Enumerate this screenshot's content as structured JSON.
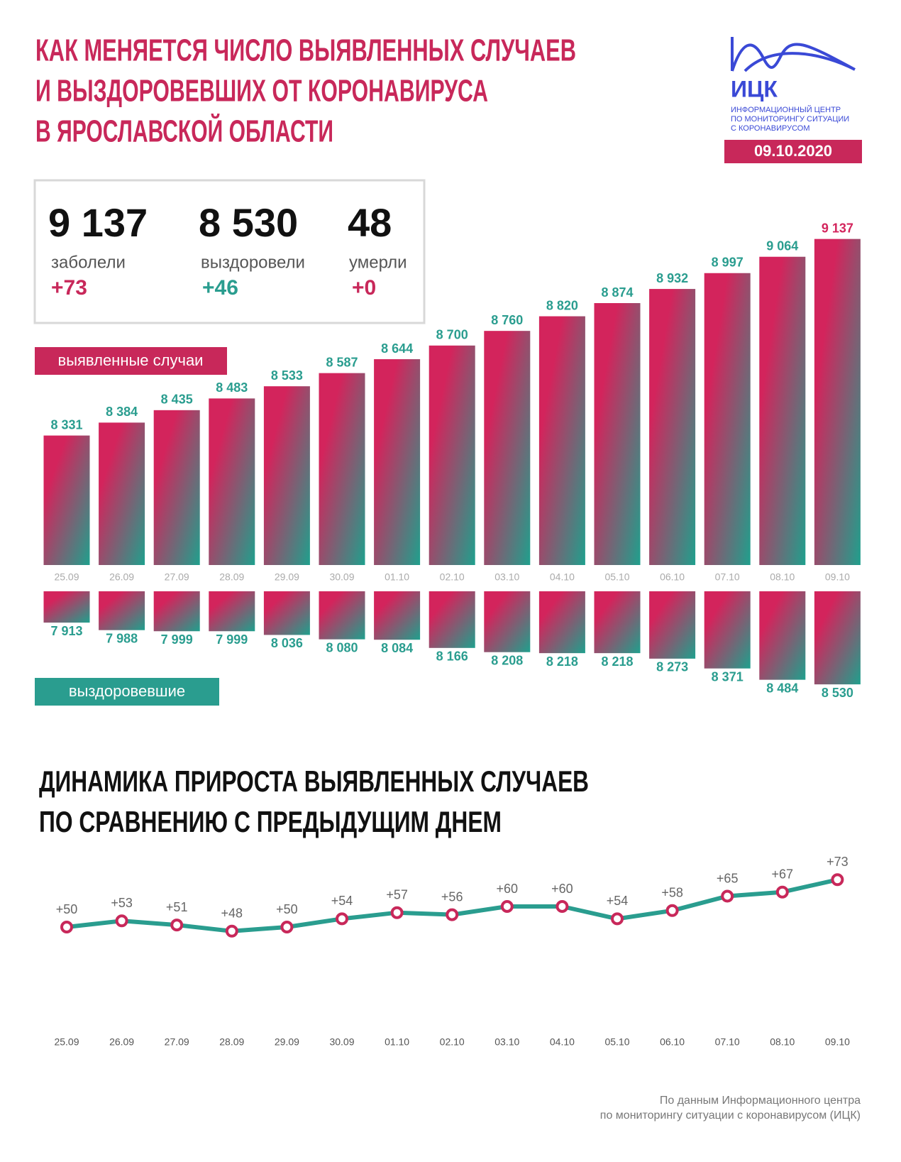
{
  "header": {
    "title_lines": [
      "КАК МЕНЯЕТСЯ ЧИСЛО ВЫЯВЛЕННЫХ СЛУЧАЕВ",
      "И ВЫЗДОРОВЕВШИХ ОТ КОРОНАВИРУСА",
      "В ЯРОСЛАВСКОЙ ОБЛАСТИ"
    ],
    "logo": {
      "abbr": "ИЦК",
      "lines": [
        "ИНФОРМАЦИОННЫЙ ЦЕНТР",
        "ПО МОНИТОРИНГУ СИТУАЦИИ",
        "С КОРОНАВИРУСОМ"
      ]
    },
    "date": "09.10.2020"
  },
  "stats": [
    {
      "value": "9 137",
      "label": "заболели",
      "delta": "+73"
    },
    {
      "value": "8 530",
      "label": "выздоровели",
      "delta": "+46"
    },
    {
      "value": "48",
      "label": "умерли",
      "delta": "+0"
    }
  ],
  "chart_data": [
    {
      "type": "bar",
      "legend": "выявленные случаи",
      "categories": [
        "25.09",
        "26.09",
        "27.09",
        "28.09",
        "29.09",
        "30.09",
        "01.10",
        "02.10",
        "03.10",
        "04.10",
        "05.10",
        "06.10",
        "07.10",
        "08.10",
        "09.10"
      ],
      "values": [
        8331,
        8384,
        8435,
        8483,
        8533,
        8587,
        8644,
        8700,
        8760,
        8820,
        8874,
        8932,
        8997,
        9064,
        9137
      ],
      "value_labels": [
        "8 331",
        "8 384",
        "8 435",
        "8 483",
        "8 533",
        "8 587",
        "8 644",
        "8 700",
        "8 760",
        "8 820",
        "8 874",
        "8 932",
        "8 997",
        "9 064",
        "9 137"
      ],
      "ylim": [
        7800,
        9200
      ],
      "color": [
        "#d3245c",
        "#1fa08d"
      ]
    },
    {
      "type": "bar",
      "inverted": true,
      "legend": "выздоровевшие",
      "values": [
        7913,
        7988,
        7999,
        7999,
        8036,
        8080,
        8084,
        8166,
        8208,
        8218,
        8218,
        8273,
        8371,
        8484,
        8530
      ],
      "value_labels": [
        "7 913",
        "7 988",
        "7 999",
        "7 999",
        "8 036",
        "8 080",
        "8 084",
        "8 166",
        "8 208",
        "8 218",
        "8 218",
        "8 273",
        "8 371",
        "8 484",
        "8 530"
      ],
      "ylim": [
        7600,
        8600
      ],
      "color": [
        "#d3245c",
        "#1fa08d"
      ]
    },
    {
      "type": "line",
      "title": [
        "ДИНАМИКА ПРИРОСТА ВЫЯВЛЕННЫХ СЛУЧАЕВ",
        "ПО СРАВНЕНИЮ С ПРЕДЫДУЩИМ ДНЕМ"
      ],
      "categories": [
        "25.09",
        "26.09",
        "27.09",
        "28.09",
        "29.09",
        "30.09",
        "01.10",
        "02.10",
        "03.10",
        "04.10",
        "05.10",
        "06.10",
        "07.10",
        "08.10",
        "09.10"
      ],
      "values": [
        50,
        53,
        51,
        48,
        50,
        54,
        57,
        56,
        60,
        60,
        54,
        58,
        65,
        67,
        73
      ],
      "value_labels": [
        "+50",
        "+53",
        "+51",
        "+48",
        "+50",
        "+54",
        "+57",
        "+56",
        "+60",
        "+60",
        "+54",
        "+58",
        "+65",
        "+67",
        "+73"
      ],
      "ylim": [
        40,
        80
      ],
      "color": "#2a9d8f",
      "marker_color": "#c8285a"
    }
  ],
  "source": [
    "По данным Информационного центра",
    "по мониторингу ситуации с коронавирусом (ИЦК)"
  ]
}
